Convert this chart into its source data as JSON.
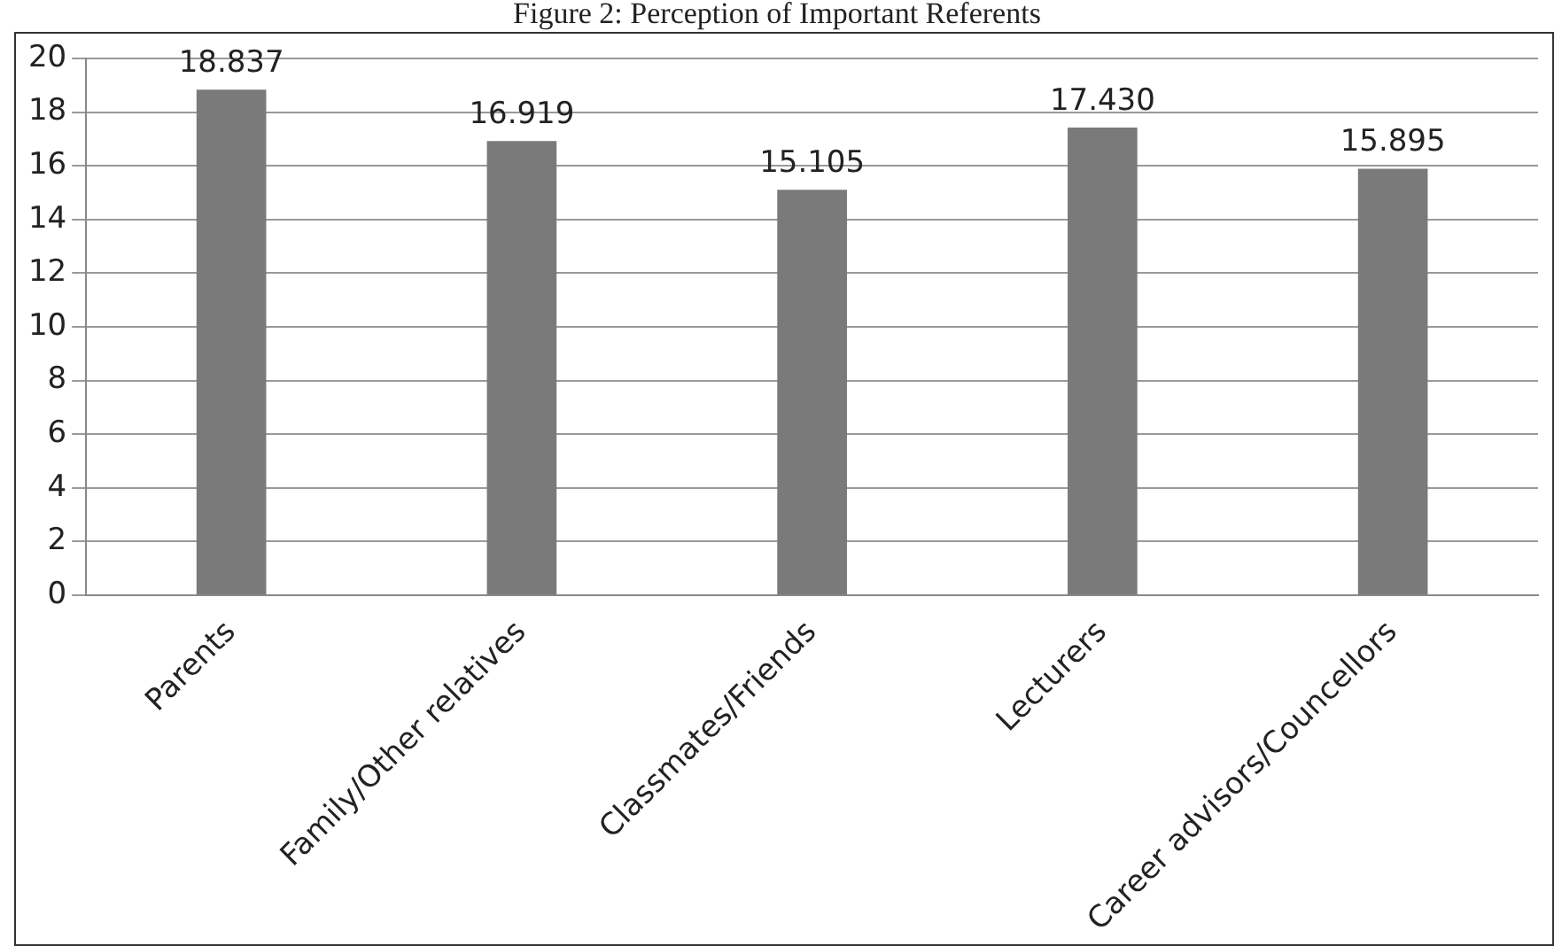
{
  "chart_data": {
    "type": "bar",
    "title": "Figure 2: Perception of Important Referents",
    "categories": [
      "Parents",
      "Family/Other relatives",
      "Classmates/Friends",
      "Lecturers",
      "Career advisors/Councellors"
    ],
    "values": [
      18.837,
      16.919,
      15.105,
      17.43,
      15.895
    ],
    "value_labels": [
      "18.837",
      "16.919",
      "15.105",
      "17.430",
      "15.895"
    ],
    "color": "#7a7a7a",
    "ylim": [
      0,
      20
    ],
    "yticks": [
      0,
      2,
      4,
      6,
      8,
      10,
      12,
      14,
      16,
      18,
      20
    ],
    "grid": "y",
    "legend": false
  }
}
